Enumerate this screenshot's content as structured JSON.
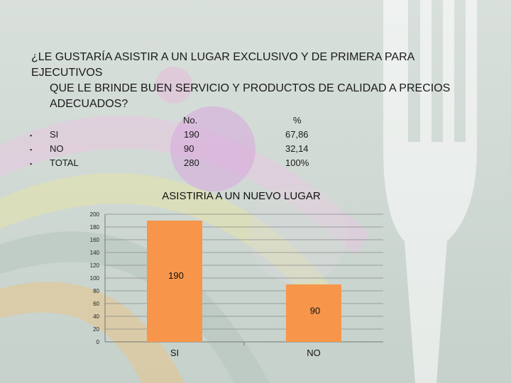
{
  "question": {
    "line1": "¿LE GUSTARÍA ASISTIR A UN LUGAR EXCLUSIVO Y DE PRIMERA PARA EJECUTIVOS",
    "line2": "QUE LE BRINDE BUEN SERVICIO Y PRODUCTOS DE CALIDAD A PRECIOS",
    "line3": "ADECUADOS?"
  },
  "stats_table": {
    "headers": {
      "count": "No.",
      "percent": "%"
    },
    "rows": [
      {
        "label": "SI",
        "count": "190",
        "percent": "67,86"
      },
      {
        "label": "NO",
        "count": "90",
        "percent": "32,14"
      },
      {
        "label": "TOTAL",
        "count": "280",
        "percent": "100%"
      }
    ]
  },
  "chart_data": {
    "type": "bar",
    "title": "ASISTIRIA A UN NUEVO LUGAR",
    "categories": [
      "SI",
      "NO"
    ],
    "values": [
      190,
      90
    ],
    "data_labels": [
      "190",
      "90"
    ],
    "ylim": [
      0,
      200
    ],
    "yticks": [
      0,
      20,
      40,
      60,
      80,
      100,
      120,
      140,
      160,
      180,
      200
    ],
    "grid": true,
    "legend": "none",
    "bar_color": "#f7964a"
  }
}
